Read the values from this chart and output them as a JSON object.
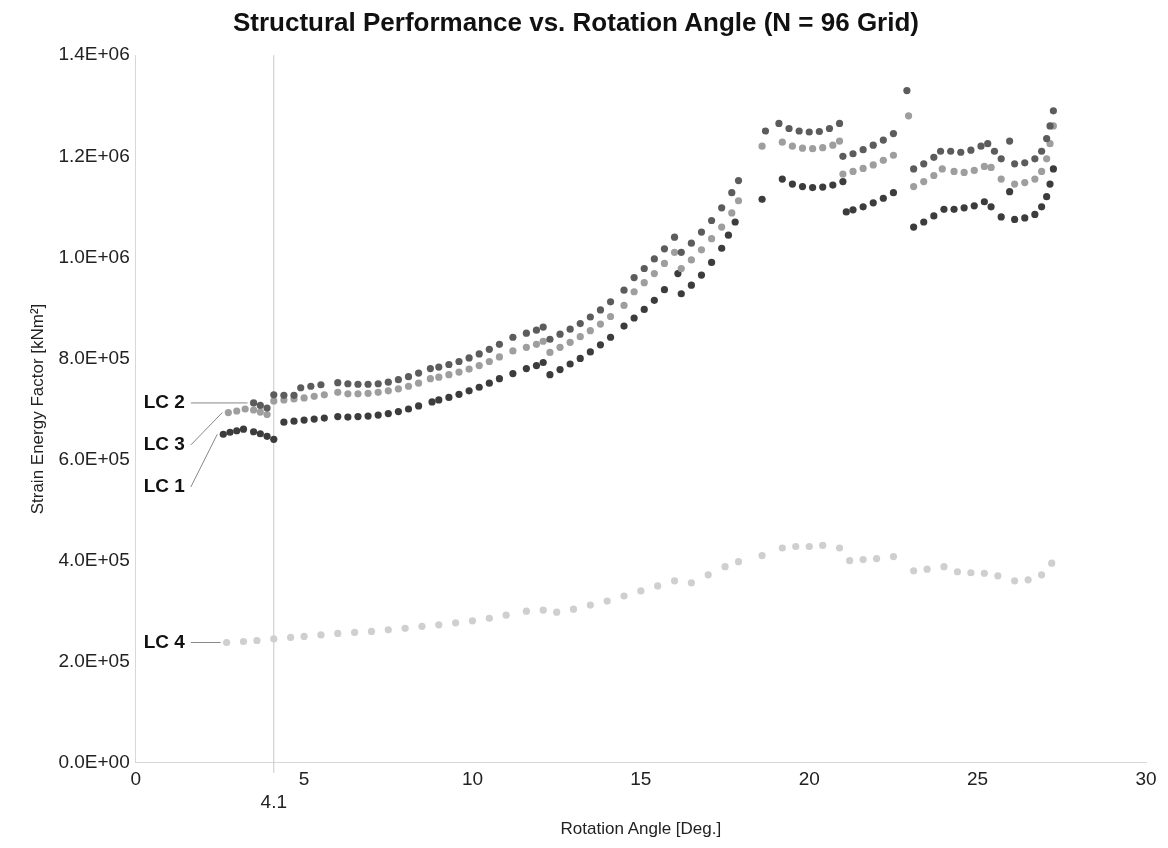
{
  "chart_data": {
    "type": "scatter",
    "title": "Structural Performance vs. Rotation Angle (N = 96 Grid)",
    "xlabel": "Rotation Angle [Deg.]",
    "ylabel": "Strain Energy Factor [kNm²]",
    "marker": "circle",
    "grid": false,
    "legend": false,
    "xlim": [
      0,
      30
    ],
    "xticks": [
      0,
      5,
      10,
      15,
      20,
      25,
      30
    ],
    "ylim": [
      0,
      1400000
    ],
    "yticks": [
      {
        "value": 0,
        "label": "0.0E+00"
      },
      {
        "value": 200000,
        "label": "2.0E+05"
      },
      {
        "value": 400000,
        "label": "4.0E+05"
      },
      {
        "value": 600000,
        "label": "6.0E+05"
      },
      {
        "value": 800000,
        "label": "8.0E+05"
      },
      {
        "value": 1000000,
        "label": "1.0E+06"
      },
      {
        "value": 1200000,
        "label": "1.2E+06"
      },
      {
        "value": 1400000,
        "label": "1.4E+06"
      }
    ],
    "ref_lines": [
      {
        "axis": "x",
        "value": 4.1,
        "label": "4.1",
        "color": "#c8c8c8"
      }
    ],
    "series": [
      {
        "name": "LC 2",
        "color": "#5c5c5c",
        "x": [
          3.5,
          3.7,
          3.9,
          4.1,
          4.4,
          4.7,
          4.9,
          5.2,
          5.5,
          6.0,
          6.3,
          6.6,
          6.9,
          7.2,
          7.5,
          7.8,
          8.1,
          8.4,
          8.75,
          9.0,
          9.3,
          9.6,
          9.9,
          10.2,
          10.5,
          10.8,
          11.2,
          11.6,
          11.9,
          12.1,
          12.3,
          12.6,
          12.9,
          13.2,
          13.5,
          13.8,
          14.1,
          14.5,
          14.8,
          15.1,
          15.4,
          15.7,
          16.0,
          16.2,
          16.5,
          16.8,
          17.1,
          17.4,
          17.7,
          17.9,
          18.7,
          19.1,
          19.4,
          19.7,
          20.0,
          20.3,
          20.6,
          20.9,
          21.0,
          21.3,
          21.6,
          21.9,
          22.2,
          22.5,
          22.9,
          23.1,
          23.4,
          23.7,
          23.9,
          24.2,
          24.5,
          24.8,
          25.1,
          25.3,
          25.5,
          25.7,
          25.95,
          26.1,
          26.4,
          26.7,
          26.9,
          27.05,
          27.15,
          27.25
        ],
        "values": [
          712000,
          707000,
          702000,
          728000,
          727000,
          727000,
          742000,
          745000,
          748000,
          752000,
          750000,
          749000,
          749000,
          750000,
          753000,
          758000,
          764000,
          771000,
          780000,
          783000,
          788000,
          794000,
          801000,
          809000,
          818000,
          828000,
          842000,
          850000,
          856000,
          862000,
          838000,
          848000,
          858000,
          869000,
          882000,
          896000,
          912000,
          935000,
          960000,
          978000,
          997000,
          1017000,
          1040000,
          1010000,
          1028000,
          1050000,
          1073000,
          1098000,
          1128000,
          1152000,
          1250000,
          1265000,
          1255000,
          1250000,
          1248000,
          1249000,
          1255000,
          1265000,
          1200000,
          1205000,
          1213000,
          1222000,
          1232000,
          1245000,
          1330000,
          1175000,
          1185000,
          1198000,
          1210000,
          1210000,
          1208000,
          1212000,
          1220000,
          1225000,
          1210000,
          1195000,
          1230000,
          1185000,
          1187000,
          1195000,
          1210000,
          1235000,
          1260000,
          1290000
        ]
      },
      {
        "name": "LC 3",
        "color": "#9e9e9e",
        "x": [
          2.75,
          3.0,
          3.25,
          3.5,
          3.7,
          3.9,
          4.1,
          4.4,
          4.7,
          5.0,
          5.3,
          5.6,
          6.0,
          6.3,
          6.6,
          6.9,
          7.2,
          7.5,
          7.8,
          8.1,
          8.4,
          8.75,
          9.0,
          9.3,
          9.6,
          9.9,
          10.2,
          10.5,
          10.8,
          11.2,
          11.6,
          11.9,
          12.1,
          12.3,
          12.6,
          12.9,
          13.2,
          13.5,
          13.8,
          14.1,
          14.5,
          14.8,
          15.1,
          15.4,
          15.7,
          16.0,
          16.2,
          16.5,
          16.8,
          17.1,
          17.4,
          17.7,
          17.9,
          18.6,
          19.2,
          19.5,
          19.8,
          20.1,
          20.4,
          20.7,
          20.9,
          21.0,
          21.3,
          21.6,
          21.9,
          22.2,
          22.5,
          22.95,
          23.1,
          23.4,
          23.7,
          23.95,
          24.3,
          24.6,
          24.9,
          25.2,
          25.4,
          25.7,
          26.1,
          26.4,
          26.7,
          26.9,
          27.05,
          27.15,
          27.25
        ],
        "values": [
          693000,
          696000,
          700000,
          698000,
          694000,
          689000,
          716000,
          718000,
          720000,
          722000,
          725000,
          728000,
          733000,
          730000,
          730000,
          731000,
          733000,
          736000,
          740000,
          745000,
          751000,
          760000,
          763000,
          768000,
          773000,
          779000,
          786000,
          794000,
          803000,
          815000,
          822000,
          828000,
          834000,
          812000,
          822000,
          832000,
          843000,
          855000,
          868000,
          883000,
          905000,
          932000,
          950000,
          968000,
          988000,
          1010000,
          978000,
          995000,
          1015000,
          1037000,
          1060000,
          1088000,
          1112000,
          1220000,
          1228000,
          1220000,
          1216000,
          1215000,
          1217000,
          1222000,
          1230000,
          1165000,
          1170000,
          1176000,
          1183000,
          1192000,
          1202000,
          1280000,
          1140000,
          1150000,
          1162000,
          1175000,
          1170000,
          1168000,
          1172000,
          1180000,
          1178000,
          1155000,
          1145000,
          1148000,
          1155000,
          1170000,
          1195000,
          1225000,
          1260000
        ]
      },
      {
        "name": "LC 1",
        "color": "#3c3c3c",
        "x": [
          2.6,
          2.8,
          3.0,
          3.2,
          3.5,
          3.7,
          3.9,
          4.1,
          4.4,
          4.7,
          5.0,
          5.3,
          5.6,
          6.0,
          6.3,
          6.6,
          6.9,
          7.2,
          7.5,
          7.8,
          8.1,
          8.4,
          8.8,
          9.0,
          9.3,
          9.6,
          9.9,
          10.2,
          10.5,
          10.8,
          11.2,
          11.6,
          11.9,
          12.1,
          12.3,
          12.6,
          12.9,
          13.2,
          13.5,
          13.8,
          14.1,
          14.5,
          14.8,
          15.1,
          15.4,
          15.7,
          16.1,
          16.2,
          16.5,
          16.8,
          17.1,
          17.4,
          17.6,
          17.8,
          18.6,
          19.2,
          19.5,
          19.8,
          20.1,
          20.4,
          20.7,
          21.0,
          21.1,
          21.3,
          21.6,
          21.9,
          22.2,
          22.5,
          23.1,
          23.4,
          23.7,
          24.0,
          24.3,
          24.6,
          24.9,
          25.2,
          25.4,
          25.7,
          25.95,
          26.1,
          26.4,
          26.7,
          26.9,
          27.05,
          27.15,
          27.25
        ],
        "values": [
          650000,
          654000,
          657000,
          660000,
          655000,
          651000,
          646000,
          640000,
          674000,
          676000,
          678000,
          680000,
          682000,
          685000,
          684000,
          685000,
          686000,
          688000,
          691000,
          695000,
          700000,
          706000,
          714000,
          718000,
          723000,
          729000,
          736000,
          743000,
          751000,
          760000,
          770000,
          780000,
          786000,
          792000,
          768000,
          778000,
          789000,
          800000,
          813000,
          827000,
          842000,
          864000,
          880000,
          897000,
          915000,
          936000,
          968000,
          928000,
          945000,
          965000,
          990000,
          1018000,
          1044000,
          1070000,
          1115000,
          1155000,
          1145000,
          1140000,
          1138000,
          1139000,
          1143000,
          1150000,
          1090000,
          1094000,
          1100000,
          1108000,
          1117000,
          1128000,
          1060000,
          1070000,
          1082000,
          1095000,
          1095000,
          1098000,
          1102000,
          1110000,
          1100000,
          1080000,
          1130000,
          1075000,
          1078000,
          1085000,
          1100000,
          1120000,
          1145000,
          1175000
        ]
      },
      {
        "name": "LC 4",
        "color": "#cfcfcf",
        "x": [
          2.7,
          3.2,
          3.6,
          4.1,
          4.6,
          5.0,
          5.5,
          6.0,
          6.5,
          7.0,
          7.5,
          8.0,
          8.5,
          9.0,
          9.5,
          10.0,
          10.5,
          11.0,
          11.6,
          12.1,
          12.5,
          13.0,
          13.5,
          14.0,
          14.5,
          15.0,
          15.5,
          16.0,
          16.5,
          17.0,
          17.5,
          17.9,
          18.6,
          19.2,
          19.6,
          20.0,
          20.4,
          20.9,
          21.2,
          21.6,
          22.0,
          22.5,
          23.1,
          23.5,
          24.0,
          24.4,
          24.8,
          25.2,
          25.6,
          26.1,
          26.5,
          26.9,
          27.2
        ],
        "values": [
          238000,
          240000,
          242000,
          245000,
          248000,
          250000,
          253000,
          256000,
          258000,
          260000,
          263000,
          266000,
          270000,
          273000,
          277000,
          281000,
          286000,
          292000,
          300000,
          302000,
          298000,
          304000,
          312000,
          320000,
          330000,
          340000,
          350000,
          360000,
          356000,
          372000,
          388000,
          398000,
          410000,
          425000,
          428000,
          428000,
          430000,
          425000,
          400000,
          402000,
          404000,
          408000,
          380000,
          383000,
          388000,
          378000,
          376000,
          375000,
          370000,
          360000,
          362000,
          372000,
          395000
        ]
      }
    ]
  }
}
